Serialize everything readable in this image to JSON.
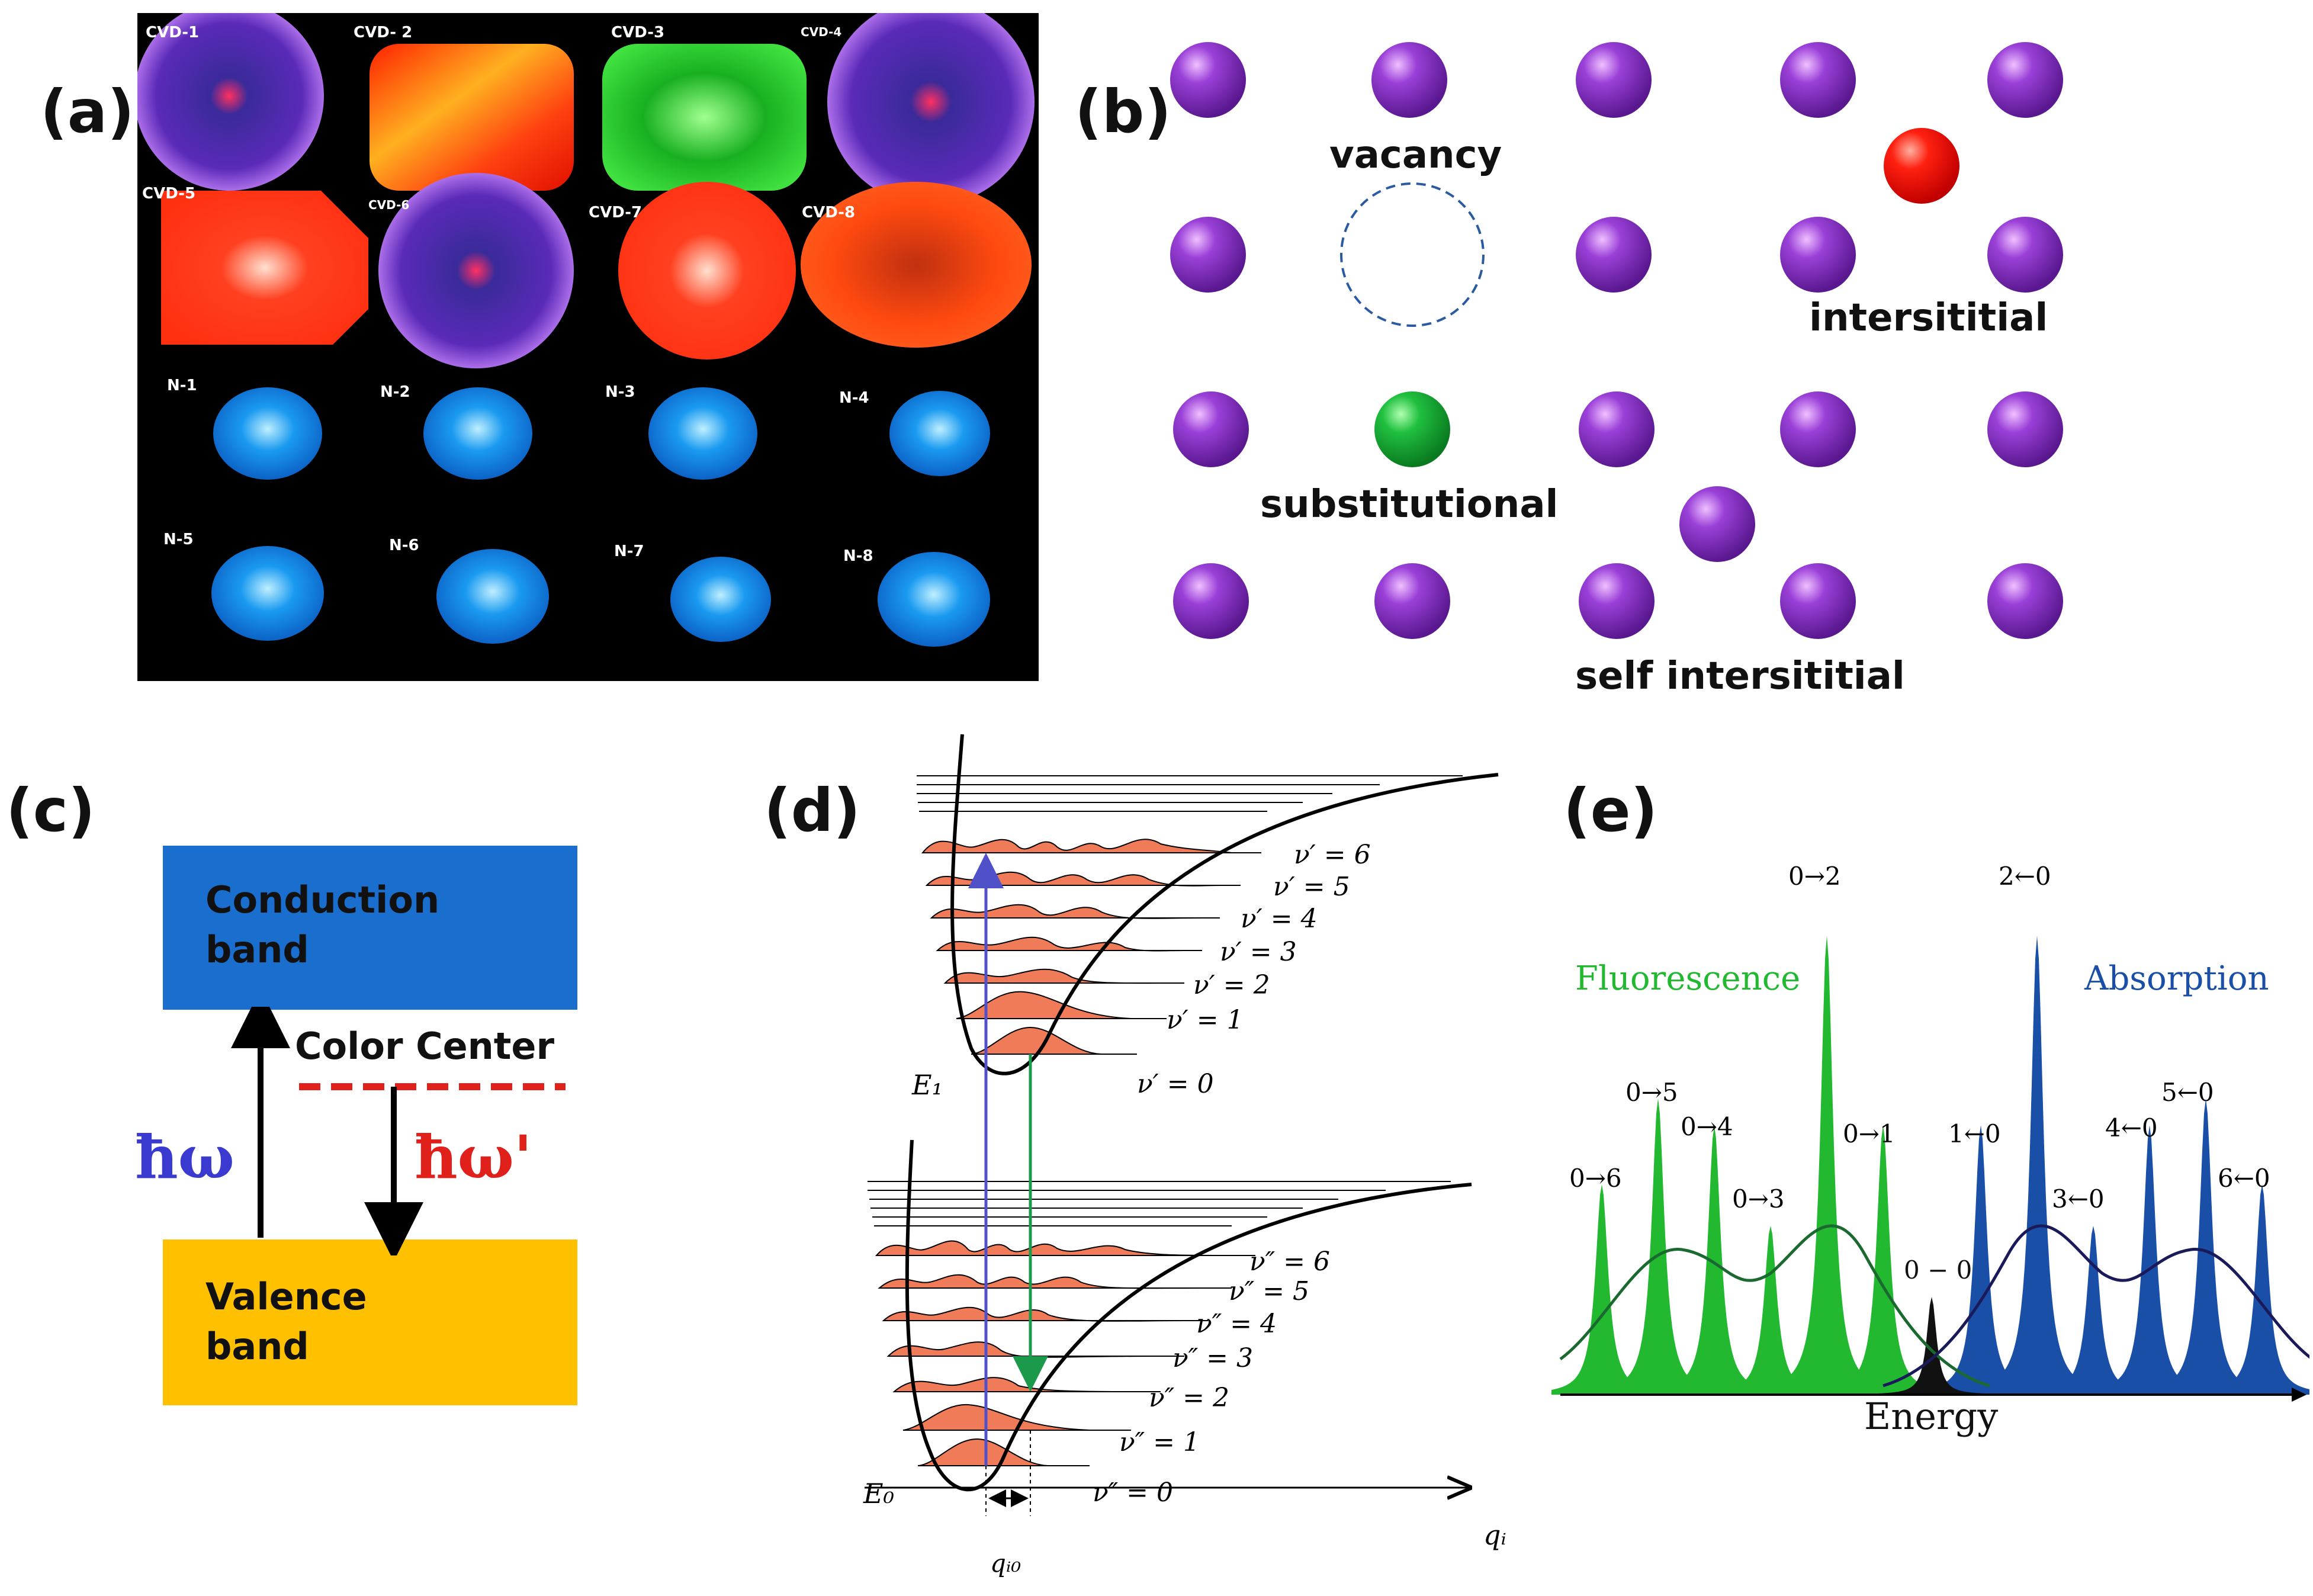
{
  "panel_labels": {
    "a": "(a)",
    "b": "(b)",
    "c": "(c)",
    "d": "(d)",
    "e": "(e)"
  },
  "panel_a": {
    "gems": [
      {
        "id": "CVD-1",
        "color": "#7b3cd6"
      },
      {
        "id": "CVD- 2",
        "color": "#ff3a10"
      },
      {
        "id": "CVD-3",
        "color": "#22c230"
      },
      {
        "id": "CVD-4",
        "color": "#9a4fe8"
      },
      {
        "id": "CVD-5",
        "color": "#ff3a12"
      },
      {
        "id": "CVD-6",
        "color": "#6a36c8"
      },
      {
        "id": "CVD-7",
        "color": "#ff3a18"
      },
      {
        "id": "CVD-8",
        "color": "#e8420e"
      },
      {
        "id": "N-1",
        "color": "#1aa8ff"
      },
      {
        "id": "N-2",
        "color": "#1ab0ff"
      },
      {
        "id": "N-3",
        "color": "#1aa8ff"
      },
      {
        "id": "N-4",
        "color": "#1aa0ff"
      },
      {
        "id": "N-5",
        "color": "#1aa8ff"
      },
      {
        "id": "N-6",
        "color": "#1ab0ff"
      },
      {
        "id": "N-7",
        "color": "#1a90f0"
      },
      {
        "id": "N-8",
        "color": "#1aa8ff"
      }
    ]
  },
  "panel_b": {
    "labels": {
      "vacancy": "vacancy",
      "interstitial": "intersititial",
      "substitutional": "substitutional",
      "self_interstitial": "self intersititial"
    },
    "colors": {
      "host": "#7a2bc0",
      "interstitial": "#ff1a1a",
      "substitutional": "#1ab83a",
      "vacancy": "#2a5aa0"
    }
  },
  "panel_c": {
    "conduction_band": [
      "Conduction",
      "band"
    ],
    "valence_band": [
      "Valence",
      "band"
    ],
    "color_center": "Color Center",
    "excitation": "ħω",
    "emission": "ħω'",
    "colors": {
      "conduction": "#1a6fce",
      "valence": "#ffc000",
      "center_line": "#e0201a",
      "excitation": "#3a3ad0",
      "emission": "#e0201a"
    }
  },
  "panel_d": {
    "upper_levels": [
      "ν′ = 6",
      "ν′ = 5",
      "ν′ = 4",
      "ν′ = 3",
      "ν′ = 2",
      "ν′ = 1",
      "ν′ = 0"
    ],
    "lower_levels": [
      "ν″ = 6",
      "ν″ = 5",
      "ν″ = 4",
      "ν″ = 3",
      "ν″ = 2",
      "ν″ = 1",
      "ν″ = 0"
    ],
    "E1": "E₁",
    "E0": "E₀",
    "x_axis": "qᵢ",
    "offset": "qᵢ₀",
    "colors": {
      "wavefn": "#f07b58",
      "absorption": "#5050c8",
      "emission": "#1a9a4a"
    }
  },
  "panel_e": {
    "fluorescence_label": "Fluorescence",
    "absorption_label": "Absorption",
    "x_label": "Energy",
    "zero_phonon": "0 − 0",
    "fluorescence_peaks": [
      "0→6",
      "0→5",
      "0→4",
      "0→3",
      "0→2",
      "0→1"
    ],
    "absorption_peaks": [
      "1←0",
      "2←0",
      "3←0",
      "4←0",
      "5←0",
      "6←0"
    ],
    "colors": {
      "fluorescence": "#22b830",
      "absorption": "#1a4fa8",
      "zpl": "#111111",
      "envelope_f": "#1a6a30",
      "envelope_a": "#1a1a5a"
    }
  }
}
